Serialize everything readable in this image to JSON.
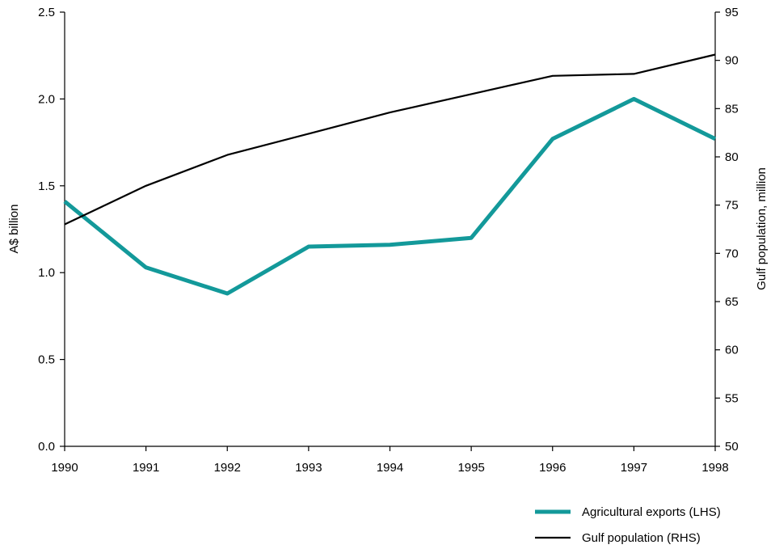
{
  "chart_data": {
    "type": "line",
    "x": [
      "1990",
      "1991",
      "1992",
      "1993",
      "1994",
      "1995",
      "1996",
      "1997",
      "1998"
    ],
    "y_left_label": "A$ billion",
    "y_right_label": "Gulf population, million",
    "y_left_lim": [
      0,
      2.5
    ],
    "y_left_ticks": [
      "0.0",
      "0.5",
      "1.0",
      "1.5",
      "2.0",
      "2.5"
    ],
    "y_right_lim": [
      50,
      95
    ],
    "y_right_ticks": [
      "50",
      "55",
      "60",
      "65",
      "70",
      "75",
      "80",
      "85",
      "90",
      "95"
    ],
    "series": [
      {
        "name": "Agricultural exports (LHS)",
        "axis": "left",
        "color": "#13999a",
        "values": [
          1.41,
          1.03,
          0.88,
          1.15,
          1.16,
          1.2,
          1.77,
          2.0,
          1.77
        ]
      },
      {
        "name": "Gulf population (RHS)",
        "axis": "right",
        "color": "#000000",
        "values": [
          73.0,
          77.0,
          80.2,
          82.4,
          84.6,
          86.5,
          88.4,
          88.6,
          90.6
        ]
      }
    ],
    "legend_position": "bottom-right",
    "grid": false
  }
}
